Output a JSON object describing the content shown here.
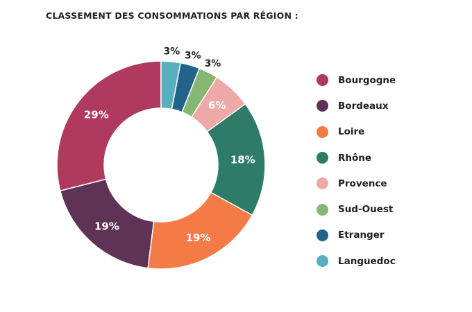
{
  "chart_data": {
    "type": "pie",
    "variant": "donut",
    "title": "CLASSEMENT DES CONSOMMATIONS PAR RÉGION :",
    "categories": [
      "Bourgogne",
      "Bordeaux",
      "Loire",
      "Rhône",
      "Provence",
      "Sud-Ouest",
      "Etranger",
      "Languedoc"
    ],
    "values": [
      29,
      19,
      19,
      18,
      6,
      3,
      3,
      3
    ],
    "labels": [
      "29%",
      "19%",
      "19%",
      "18%",
      "6%",
      "3%",
      "3%",
      "3%"
    ],
    "unit": "%",
    "colors": [
      "#B03A5E",
      "#5E3356",
      "#F47A46",
      "#2E7B68",
      "#EFA8A8",
      "#86B873",
      "#22638C",
      "#5AAFBE"
    ],
    "legend_position": "right"
  }
}
